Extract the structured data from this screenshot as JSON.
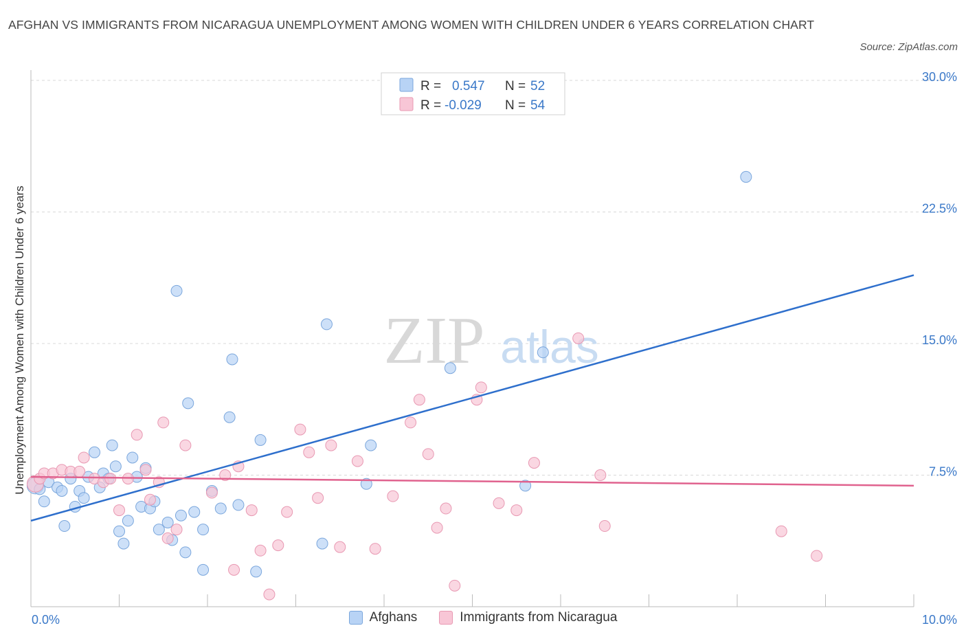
{
  "title": "AFGHAN VS IMMIGRANTS FROM NICARAGUA UNEMPLOYMENT AMONG WOMEN WITH CHILDREN UNDER 6 YEARS CORRELATION CHART",
  "source": "Source: ZipAtlas.com",
  "watermark": {
    "zip": "ZIP",
    "atlas": "atlas"
  },
  "colors": {
    "afghans_fill": "#b8d3f5",
    "afghans_stroke": "#7aa6dc",
    "afghans_line": "#2e6fcc",
    "nicaragua_fill": "#f8c6d6",
    "nicaragua_stroke": "#e898b2",
    "nicaragua_line": "#e0628e",
    "tick": "#3a78c8",
    "grid": "#d8d8d8"
  },
  "legend": {
    "afghans": {
      "r_label": "R =",
      "r_value": "0.547",
      "n_label": "N =",
      "n_value": "52"
    },
    "nicaragua": {
      "r_label": "R =",
      "r_value": "-0.029",
      "n_label": "N =",
      "n_value": "54"
    }
  },
  "chart_data": {
    "type": "scatter",
    "title": "AFGHAN VS IMMIGRANTS FROM NICARAGUA UNEMPLOYMENT AMONG WOMEN WITH CHILDREN UNDER 6 YEARS CORRELATION CHART",
    "xlabel": "",
    "ylabel": "Unemployment Among Women with Children Under 6 years",
    "xlim": [
      0,
      10
    ],
    "ylim": [
      0,
      30
    ],
    "x_tick_labels": [
      "0.0%",
      "10.0%"
    ],
    "y_ticks": [
      7.5,
      15.0,
      22.5,
      30.0
    ],
    "y_tick_labels": [
      "7.5%",
      "15.0%",
      "22.5%",
      "30.0%"
    ],
    "grid": "horizontal dashed",
    "series": [
      {
        "name": "Afghans",
        "trend": {
          "x0": 0,
          "y0": 4.9,
          "x1": 10,
          "y1": 18.9
        },
        "points": [
          [
            0.05,
            6.9
          ],
          [
            0.1,
            6.7
          ],
          [
            0.15,
            6.0
          ],
          [
            0.2,
            7.1
          ],
          [
            0.3,
            6.8
          ],
          [
            0.35,
            6.6
          ],
          [
            0.38,
            4.6
          ],
          [
            0.45,
            7.3
          ],
          [
            0.5,
            5.7
          ],
          [
            0.55,
            6.6
          ],
          [
            0.6,
            6.2
          ],
          [
            0.65,
            7.4
          ],
          [
            0.72,
            8.8
          ],
          [
            0.78,
            6.8
          ],
          [
            0.82,
            7.6
          ],
          [
            0.88,
            7.3
          ],
          [
            0.92,
            9.2
          ],
          [
            0.96,
            8.0
          ],
          [
            1.0,
            4.3
          ],
          [
            1.05,
            3.6
          ],
          [
            1.1,
            4.9
          ],
          [
            1.15,
            8.5
          ],
          [
            1.2,
            7.4
          ],
          [
            1.25,
            5.7
          ],
          [
            1.3,
            7.9
          ],
          [
            1.35,
            5.6
          ],
          [
            1.4,
            6.0
          ],
          [
            1.45,
            4.4
          ],
          [
            1.55,
            4.8
          ],
          [
            1.6,
            3.8
          ],
          [
            1.65,
            18.0
          ],
          [
            1.7,
            5.2
          ],
          [
            1.75,
            3.1
          ],
          [
            1.78,
            11.6
          ],
          [
            1.85,
            5.4
          ],
          [
            1.95,
            4.4
          ],
          [
            1.95,
            2.1
          ],
          [
            2.05,
            6.6
          ],
          [
            2.15,
            5.6
          ],
          [
            2.25,
            10.8
          ],
          [
            2.28,
            14.1
          ],
          [
            2.35,
            5.8
          ],
          [
            2.55,
            2.0
          ],
          [
            2.6,
            9.5
          ],
          [
            3.3,
            3.6
          ],
          [
            3.35,
            16.1
          ],
          [
            3.8,
            7.0
          ],
          [
            3.85,
            9.2
          ],
          [
            4.75,
            13.6
          ],
          [
            5.6,
            6.9
          ],
          [
            5.8,
            14.5
          ],
          [
            8.1,
            24.5
          ]
        ]
      },
      {
        "name": "Immigrants from Nicaragua",
        "trend": {
          "x0": 0,
          "y0": 7.4,
          "x1": 10,
          "y1": 6.9
        },
        "points": [
          [
            0.05,
            7.0
          ],
          [
            0.1,
            7.3
          ],
          [
            0.15,
            7.6
          ],
          [
            0.25,
            7.6
          ],
          [
            0.35,
            7.8
          ],
          [
            0.45,
            7.7
          ],
          [
            0.55,
            7.7
          ],
          [
            0.6,
            8.5
          ],
          [
            0.72,
            7.3
          ],
          [
            0.82,
            7.1
          ],
          [
            0.9,
            7.3
          ],
          [
            1.0,
            5.5
          ],
          [
            1.1,
            7.3
          ],
          [
            1.2,
            9.8
          ],
          [
            1.3,
            7.8
          ],
          [
            1.35,
            6.1
          ],
          [
            1.45,
            7.1
          ],
          [
            1.5,
            10.5
          ],
          [
            1.55,
            3.9
          ],
          [
            1.65,
            4.4
          ],
          [
            1.75,
            9.2
          ],
          [
            2.05,
            6.5
          ],
          [
            2.2,
            7.5
          ],
          [
            2.3,
            2.1
          ],
          [
            2.35,
            8.0
          ],
          [
            2.5,
            5.5
          ],
          [
            2.6,
            3.2
          ],
          [
            2.7,
            0.7
          ],
          [
            2.8,
            3.5
          ],
          [
            2.9,
            5.4
          ],
          [
            3.05,
            10.1
          ],
          [
            3.15,
            8.8
          ],
          [
            3.25,
            6.2
          ],
          [
            3.4,
            9.2
          ],
          [
            3.5,
            3.4
          ],
          [
            3.7,
            8.3
          ],
          [
            3.9,
            3.3
          ],
          [
            4.1,
            6.3
          ],
          [
            4.3,
            10.5
          ],
          [
            4.4,
            11.8
          ],
          [
            4.5,
            8.7
          ],
          [
            4.6,
            4.5
          ],
          [
            4.7,
            5.6
          ],
          [
            4.8,
            1.2
          ],
          [
            5.05,
            11.8
          ],
          [
            5.1,
            12.5
          ],
          [
            5.3,
            5.9
          ],
          [
            5.5,
            5.5
          ],
          [
            5.7,
            8.2
          ],
          [
            6.2,
            15.3
          ],
          [
            6.45,
            7.5
          ],
          [
            6.5,
            4.6
          ],
          [
            8.5,
            4.3
          ],
          [
            8.9,
            2.9
          ]
        ]
      }
    ]
  }
}
